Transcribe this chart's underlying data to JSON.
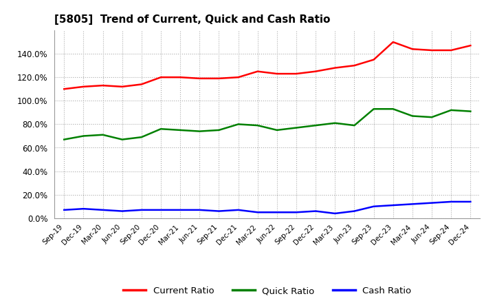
{
  "title": "[5805]  Trend of Current, Quick and Cash Ratio",
  "x_labels": [
    "Sep-19",
    "Dec-19",
    "Mar-20",
    "Jun-20",
    "Sep-20",
    "Dec-20",
    "Mar-21",
    "Jun-21",
    "Sep-21",
    "Dec-21",
    "Mar-22",
    "Jun-22",
    "Sep-22",
    "Dec-22",
    "Mar-23",
    "Jun-23",
    "Sep-23",
    "Dec-23",
    "Mar-24",
    "Jun-24",
    "Sep-24",
    "Dec-24"
  ],
  "current_ratio": [
    1.1,
    1.12,
    1.13,
    1.12,
    1.14,
    1.2,
    1.2,
    1.19,
    1.19,
    1.2,
    1.25,
    1.23,
    1.23,
    1.25,
    1.28,
    1.3,
    1.35,
    1.5,
    1.44,
    1.43,
    1.43,
    1.47
  ],
  "quick_ratio": [
    0.67,
    0.7,
    0.71,
    0.67,
    0.69,
    0.76,
    0.75,
    0.74,
    0.75,
    0.8,
    0.79,
    0.75,
    0.77,
    0.79,
    0.81,
    0.79,
    0.93,
    0.93,
    0.87,
    0.86,
    0.92,
    0.91
  ],
  "cash_ratio": [
    0.07,
    0.08,
    0.07,
    0.06,
    0.07,
    0.07,
    0.07,
    0.07,
    0.06,
    0.07,
    0.05,
    0.05,
    0.05,
    0.06,
    0.04,
    0.06,
    0.1,
    0.11,
    0.12,
    0.13,
    0.14,
    0.14
  ],
  "current_color": "#FF0000",
  "quick_color": "#008000",
  "cash_color": "#0000FF",
  "ylim": [
    0.0,
    1.6
  ],
  "yticks": [
    0.0,
    0.2,
    0.4,
    0.6,
    0.8,
    1.0,
    1.2,
    1.4
  ],
  "ytick_labels": [
    "0.0%",
    "20.0%",
    "40.0%",
    "60.0%",
    "80.0%",
    "100.0%",
    "120.0%",
    "140.0%"
  ],
  "background_color": "#ffffff",
  "grid_color": "#aaaaaa",
  "legend_labels": [
    "Current Ratio",
    "Quick Ratio",
    "Cash Ratio"
  ]
}
